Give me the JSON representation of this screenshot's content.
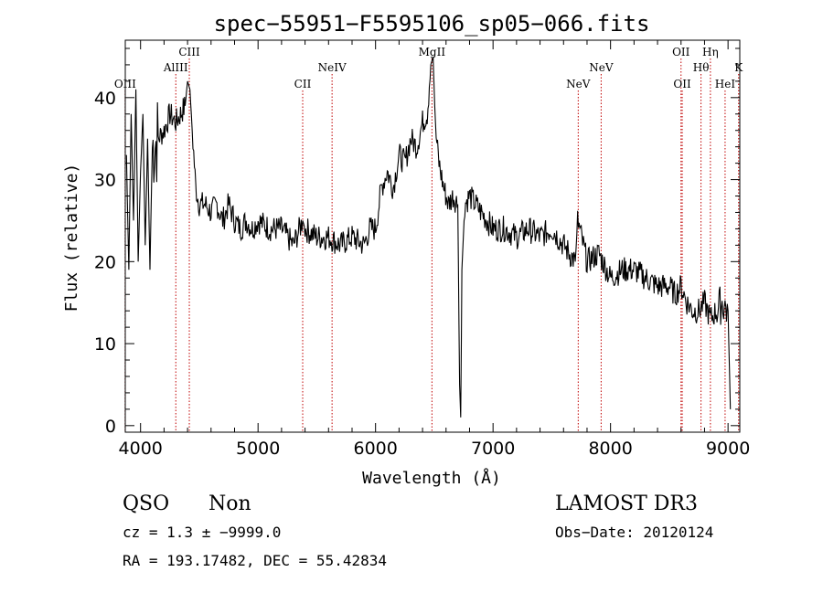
{
  "title": "spec−55951−F5595106_sp05−066.fits",
  "info": {
    "class": "QSO",
    "subclass": "Non",
    "survey": "LAMOST DR3",
    "cz": "cz = 1.3 ± −9999.0",
    "obs_date": "Obs−Date: 20120124",
    "radec": "RA = 193.17482, DEC =  55.42834"
  },
  "colors": {
    "spectrum": "#000000",
    "lines": "#c00000",
    "axes": "#000000"
  },
  "chart_data": {
    "type": "line",
    "xlabel": "Wavelength (Å)",
    "ylabel": "Flux (relative)",
    "xlim": [
      3870,
      9100
    ],
    "ylim": [
      -0.8,
      47
    ],
    "x_ticks": [
      4000,
      5000,
      6000,
      7000,
      8000,
      9000
    ],
    "y_ticks": [
      0,
      10,
      20,
      30,
      40
    ],
    "x_minor_step": 200,
    "y_minor_step": 2,
    "spectral_lines": [
      {
        "label": "OIII",
        "wavelength": 3869,
        "row": 3
      },
      {
        "label": "AlIII",
        "wavelength": 4300,
        "row": 2
      },
      {
        "label": "CIII",
        "wavelength": 4415,
        "row": 1
      },
      {
        "label": "CII",
        "wavelength": 5380,
        "row": 3
      },
      {
        "label": "NeIV",
        "wavelength": 5630,
        "row": 2
      },
      {
        "label": "MgII",
        "wavelength": 6480,
        "row": 1
      },
      {
        "label": "NeV",
        "wavelength": 7725,
        "row": 3
      },
      {
        "label": "NeV",
        "wavelength": 7920,
        "row": 2
      },
      {
        "label": "OII",
        "wavelength": 8600,
        "row": 1
      },
      {
        "label": "OII",
        "wavelength": 8610,
        "row": 3
      },
      {
        "label": "Hθ",
        "wavelength": 8770,
        "row": 2
      },
      {
        "label": "Hη",
        "wavelength": 8850,
        "row": 1
      },
      {
        "label": "HeI",
        "wavelength": 8975,
        "row": 3
      },
      {
        "label": "K",
        "wavelength": 9090,
        "row": 2
      }
    ],
    "spectrum": {
      "name": "flux",
      "x": [
        3880,
        3900,
        3920,
        3940,
        3960,
        3980,
        4000,
        4020,
        4040,
        4060,
        4080,
        4100,
        4150,
        4200,
        4250,
        4300,
        4340,
        4380,
        4400,
        4420,
        4440,
        4470,
        4500,
        4550,
        4600,
        4650,
        4700,
        4750,
        4800,
        4850,
        4900,
        4950,
        5000,
        5100,
        5200,
        5300,
        5380,
        5400,
        5500,
        5600,
        5700,
        5800,
        5900,
        5950,
        6000,
        6050,
        6100,
        6150,
        6200,
        6250,
        6300,
        6350,
        6400,
        6440,
        6470,
        6490,
        6510,
        6540,
        6580,
        6620,
        6660,
        6700,
        6715,
        6725,
        6735,
        6760,
        6800,
        6850,
        6900,
        7000,
        7100,
        7200,
        7300,
        7400,
        7500,
        7600,
        7700,
        7720,
        7800,
        7900,
        8000,
        8100,
        8200,
        8300,
        8400,
        8500,
        8550,
        8600,
        8650,
        8700,
        8750,
        8800,
        8850,
        8900,
        8950,
        9000,
        9020
      ],
      "values": [
        33,
        19,
        38,
        25,
        41,
        20,
        31,
        38,
        22,
        35,
        19,
        34,
        35,
        36,
        38,
        37,
        38,
        39,
        42,
        41,
        36,
        29,
        27,
        27,
        26,
        27,
        25,
        27,
        25,
        24,
        25,
        24,
        25,
        24,
        24,
        22,
        25,
        24,
        23,
        23,
        22,
        23,
        22,
        24,
        24,
        29,
        31,
        29,
        33,
        32,
        35,
        34,
        37,
        38,
        44,
        45,
        36,
        32,
        29,
        27,
        28,
        27,
        5,
        1,
        19,
        27,
        28,
        27,
        26,
        24,
        24,
        23,
        24,
        23,
        24,
        22,
        20,
        25,
        20,
        21,
        18,
        19,
        19,
        18,
        17,
        17,
        16,
        17,
        15,
        14,
        14,
        15,
        13,
        14,
        15,
        14,
        2
      ]
    }
  }
}
